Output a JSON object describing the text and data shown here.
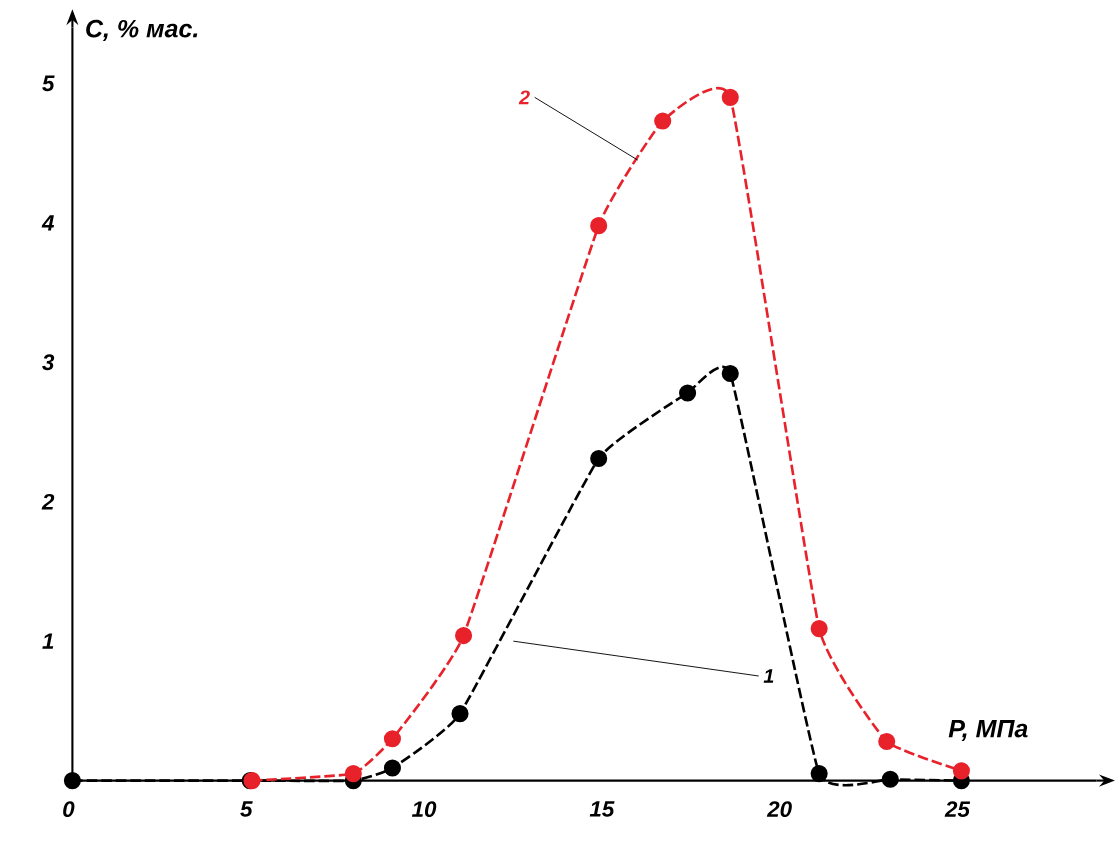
{
  "chart_data": {
    "type": "line",
    "xlabel": "P, МПа",
    "ylabel": "C, % мас.",
    "xlim": [
      0,
      28.8
    ],
    "ylim": [
      0,
      5.4
    ],
    "xticks": [
      0,
      5,
      10,
      15,
      20,
      25
    ],
    "yticks": [
      1,
      2,
      3,
      4,
      5
    ],
    "marker": "circle",
    "line_style": "dashed",
    "series": [
      {
        "name": "1",
        "color": "#000000",
        "x": [
          0,
          5,
          7.9,
          9.0,
          10.9,
          14.8,
          17.3,
          18.5,
          21.0,
          23.0,
          25.0
        ],
        "values": [
          0,
          0,
          0,
          0.09,
          0.48,
          2.31,
          2.78,
          2.92,
          0.05,
          0.01,
          0
        ]
      },
      {
        "name": "2",
        "color": "#e8222a",
        "x": [
          5.05,
          7.9,
          9.0,
          11.0,
          14.8,
          16.6,
          18.5,
          21.0,
          22.9,
          25.0
        ],
        "values": [
          0,
          0.05,
          0.3,
          1.04,
          3.98,
          4.73,
          4.9,
          1.09,
          0.28,
          0.07
        ]
      }
    ]
  }
}
